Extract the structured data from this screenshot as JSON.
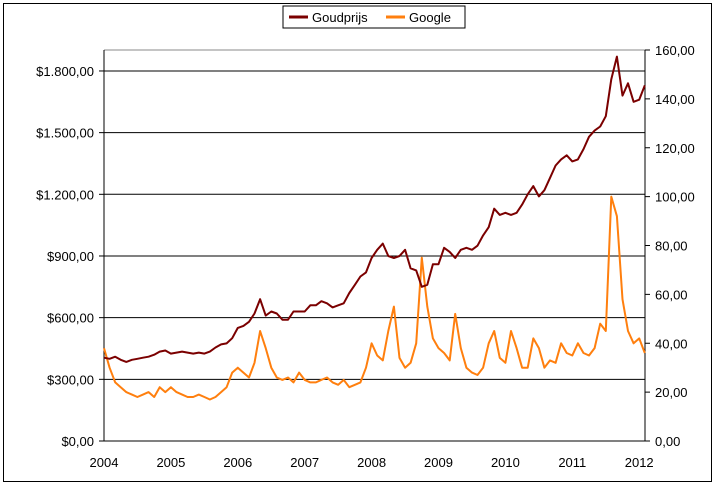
{
  "chart_data": {
    "type": "line",
    "title": "",
    "legend_position": "top",
    "x_ticks": [
      "2004",
      "2005",
      "2006",
      "2007",
      "2008",
      "2009",
      "2010",
      "2011",
      "2012"
    ],
    "x_range": [
      2004,
      2012.17
    ],
    "y_left": {
      "ticks": [
        "$0,00",
        "$300,00",
        "$600,00",
        "$900,00",
        "$1.200,00",
        "$1.500,00",
        "$1.800,00"
      ],
      "range": [
        0,
        1902
      ],
      "step": 300
    },
    "y_right": {
      "ticks": [
        "0,00",
        "20,00",
        "40,00",
        "60,00",
        "80,00",
        "100,00",
        "120,00",
        "140,00",
        "160,00"
      ],
      "range": [
        0,
        160
      ],
      "step": 20
    },
    "grid": "horizontal, left axis",
    "series": [
      {
        "name": "Goudprijs",
        "axis": "left",
        "color": "#7b0000",
        "values": [
          405,
          400,
          410,
          395,
          385,
          395,
          400,
          405,
          410,
          420,
          435,
          440,
          425,
          430,
          435,
          430,
          425,
          430,
          425,
          435,
          455,
          470,
          475,
          500,
          550,
          560,
          580,
          620,
          690,
          610,
          630,
          620,
          590,
          590,
          630,
          630,
          630,
          660,
          660,
          680,
          670,
          650,
          660,
          670,
          720,
          760,
          800,
          820,
          890,
          930,
          960,
          900,
          890,
          900,
          930,
          840,
          830,
          750,
          760,
          860,
          860,
          940,
          920,
          890,
          930,
          940,
          930,
          950,
          1000,
          1040,
          1130,
          1100,
          1110,
          1100,
          1110,
          1150,
          1200,
          1240,
          1190,
          1220,
          1280,
          1340,
          1370,
          1390,
          1360,
          1370,
          1420,
          1480,
          1510,
          1530,
          1580,
          1760,
          1870,
          1680,
          1740,
          1650,
          1660,
          1730
        ]
      },
      {
        "name": "Google",
        "axis": "right",
        "color": "#ff7f0e",
        "values": [
          38,
          30,
          24,
          22,
          20,
          19,
          18,
          19,
          20,
          18,
          22,
          20,
          22,
          20,
          19,
          18,
          18,
          19,
          18,
          17,
          18,
          20,
          22,
          28,
          30,
          28,
          26,
          32,
          45,
          38,
          30,
          26,
          25,
          26,
          24,
          28,
          25,
          24,
          24,
          25,
          26,
          24,
          23,
          25,
          22,
          23,
          24,
          30,
          40,
          35,
          33,
          45,
          55,
          34,
          30,
          32,
          40,
          75,
          55,
          42,
          38,
          36,
          33,
          52,
          38,
          30,
          28,
          27,
          30,
          40,
          45,
          34,
          32,
          45,
          38,
          30,
          30,
          42,
          38,
          30,
          33,
          32,
          40,
          36,
          35,
          40,
          36,
          35,
          38,
          48,
          45,
          100,
          92,
          58,
          45,
          40,
          42,
          36
        ]
      }
    ]
  }
}
